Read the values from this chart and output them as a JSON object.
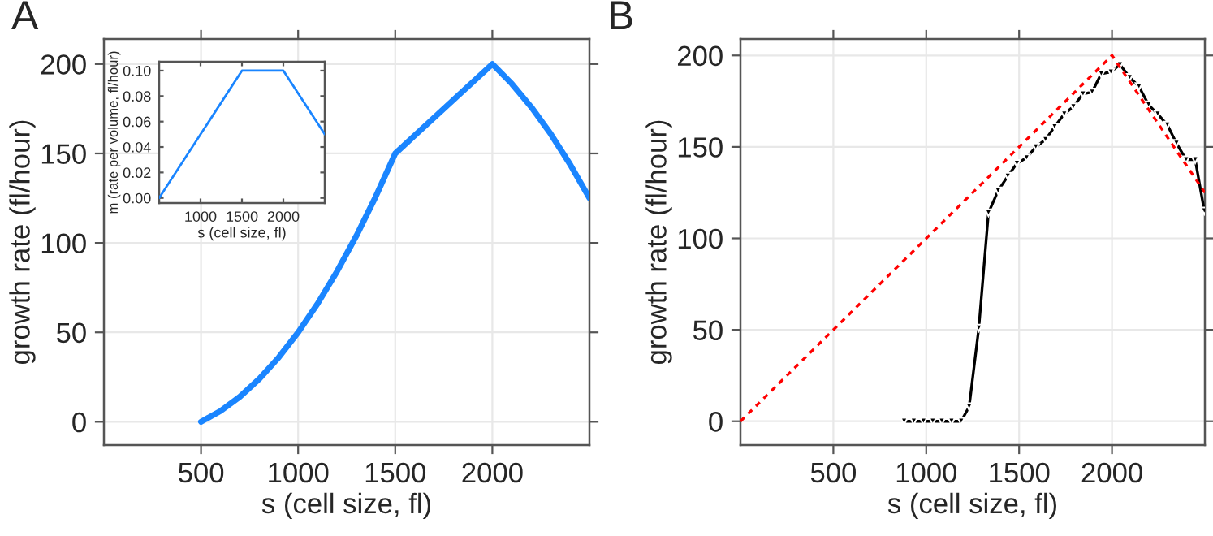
{
  "chart_data": [
    {
      "type": "line",
      "title": "A",
      "xlabel": "s (cell size, fl)",
      "ylabel": "growth rate (fl/hour)",
      "xlim": [
        0,
        2500
      ],
      "ylim": [
        -13,
        214
      ],
      "xticks": [
        500,
        1000,
        1500,
        2000
      ],
      "yticks": [
        0,
        50,
        100,
        150,
        200
      ],
      "grid": true,
      "marker": "none",
      "line_style": "solid",
      "x": [
        500,
        600,
        700,
        800,
        900,
        1000,
        1100,
        1200,
        1300,
        1400,
        1500,
        1600,
        1700,
        1800,
        1900,
        2000,
        2100,
        2200,
        2300,
        2400,
        2500
      ],
      "series": [
        {
          "color": "#1a85ff",
          "values": [
            0,
            6,
            14,
            24,
            36,
            50,
            66,
            84,
            104,
            126,
            150,
            160,
            170,
            180,
            190,
            200,
            189,
            176,
            161,
            144,
            125
          ]
        }
      ]
    },
    {
      "type": "line",
      "xlabel": "s (cell size, fl)",
      "ylabel": "m (rate per volume, fl/hour)",
      "xlim": [
        500,
        2500
      ],
      "ylim": [
        -0.004,
        0.107
      ],
      "xticks": [
        1000,
        1500,
        2000
      ],
      "yticks": [
        {
          "value": 0,
          "label": "0.00"
        },
        {
          "value": 0.02,
          "label": "0.02"
        },
        {
          "value": 0.04,
          "label": "0.04"
        },
        {
          "value": 0.06,
          "label": "0.06"
        },
        {
          "value": 0.08,
          "label": "0.08"
        },
        {
          "value": 0.1,
          "label": "0.10"
        }
      ],
      "grid": false,
      "marker": "none",
      "line_style": "solid",
      "x": [
        500,
        1500,
        2000,
        2500
      ],
      "series": [
        {
          "color": "#1a85ff",
          "values": [
            0,
            0.1,
            0.1,
            0.05
          ]
        }
      ]
    },
    {
      "type": "line",
      "title": "B",
      "xlabel": "s (cell size, fl)",
      "ylabel": "growth rate (fl/hour)",
      "xlim": [
        0,
        2500
      ],
      "ylim": [
        -13,
        209
      ],
      "xticks": [
        500,
        1000,
        1500,
        2000
      ],
      "yticks": [
        0,
        50,
        100,
        150,
        200
      ],
      "grid": true,
      "series": [
        {
          "color": "#000000",
          "marker": "triangle",
          "line_style": "solid",
          "x": [
            881,
            933,
            985,
            1035,
            1084,
            1136,
            1188,
            1231,
            1283,
            1335,
            1387,
            1439,
            1488,
            1540,
            1590,
            1642,
            1691,
            1743,
            1792,
            1844,
            1893,
            1942,
            1994,
            2043,
            2095,
            2145,
            2197,
            2246,
            2298,
            2347,
            2399,
            2448,
            2497
          ],
          "values": [
            0,
            0,
            0,
            0,
            0,
            0,
            0,
            8,
            51,
            114,
            126,
            134,
            141,
            144,
            150,
            154,
            161,
            168,
            172,
            179,
            180,
            190,
            191,
            195,
            188,
            183,
            173,
            168,
            162,
            152,
            143,
            143,
            115
          ]
        },
        {
          "color": "#ff0000",
          "marker": "none",
          "line_style": "dashed",
          "x": [
            0,
            2000,
            2500
          ],
          "values": [
            0,
            200,
            125
          ]
        }
      ]
    }
  ]
}
